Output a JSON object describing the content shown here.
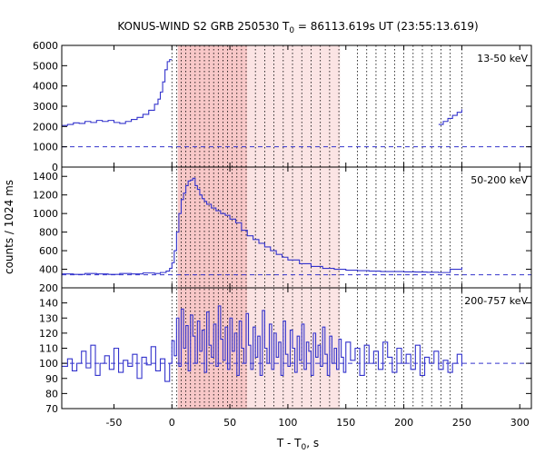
{
  "chart_data": {
    "type": "line",
    "title": "KONUS-WIND S2 GRB 250530 T",
    "title_sub": "0",
    "title_rest": " = 86113.619s UT (23:55:13.619)",
    "xlabel": "T - T",
    "xlabel_sub": "0",
    "xlabel_rest": ", s",
    "ylabel": "counts / 1024 ms",
    "xlim": [
      -95,
      310
    ],
    "xticks": [
      -50,
      0,
      50,
      100,
      150,
      200,
      250,
      300
    ],
    "grid": false,
    "line_color": "#3333cc",
    "shade_color": "#f8c8c8",
    "shade_light_color": "#fbe4e4",
    "shade_regions": [
      {
        "x": [
          5,
          65
        ],
        "intensity": "dark"
      },
      {
        "x": [
          65,
          145
        ],
        "intensity": "light"
      }
    ],
    "vlines_x": [
      0,
      4,
      8,
      12,
      16,
      20,
      24,
      28,
      32,
      36,
      40,
      44,
      48,
      52,
      56,
      60,
      64,
      72,
      80,
      88,
      96,
      104,
      112,
      120,
      128,
      136,
      144,
      160,
      168,
      176,
      184,
      192,
      200,
      208,
      216,
      224,
      232,
      240,
      250
    ],
    "panels": [
      {
        "label": "13-50 keV",
        "ylim": [
          0,
          6000
        ],
        "yticks": [
          0,
          1000,
          2000,
          3000,
          4000,
          5000,
          6000
        ],
        "background_level": 1000,
        "series": [
          {
            "name": "",
            "x": [
              -95,
              -90,
              -85,
              -80,
              -75,
              -70,
              -65,
              -60,
              -55,
              -50,
              -45,
              -40,
              -35,
              -30,
              -25,
              -20,
              -15,
              -12,
              -10,
              -8,
              -6,
              -4,
              -2,
              0
            ],
            "y": [
              2050,
              2100,
              2180,
              2150,
              2250,
              2200,
              2300,
              2250,
              2300,
              2200,
              2150,
              2250,
              2350,
              2450,
              2600,
              2800,
              3100,
              3350,
              3700,
              4200,
              4800,
              5200,
              5300,
              5300
            ]
          },
          {
            "name": "",
            "x": [
              230,
              234,
              238,
              242,
              246,
              250
            ],
            "y": [
              2100,
              2250,
              2400,
              2550,
              2700,
              2850
            ]
          }
        ]
      },
      {
        "label": "50-200 keV",
        "ylim": [
          200,
          1500
        ],
        "yticks": [
          200,
          400,
          600,
          800,
          1000,
          1200,
          1400
        ],
        "background_level": 340,
        "series": [
          {
            "name": "",
            "x": [
              -95,
              -85,
              -75,
              -65,
              -55,
              -45,
              -35,
              -25,
              -15,
              -10,
              -5,
              -2,
              0,
              2,
              4,
              6,
              8,
              10,
              12,
              14,
              16,
              18,
              20,
              22,
              24,
              26,
              28,
              30,
              34,
              38,
              42,
              46,
              50,
              55,
              60,
              65,
              70,
              75,
              80,
              85,
              90,
              95,
              100,
              110,
              120,
              130,
              140,
              150,
              160,
              170,
              180,
              190,
              200,
              210,
              220,
              230,
              240,
              250
            ],
            "y": [
              350,
              345,
              355,
              350,
              345,
              355,
              350,
              360,
              355,
              365,
              380,
              410,
              470,
              600,
              800,
              1000,
              1150,
              1220,
              1300,
              1350,
              1360,
              1380,
              1300,
              1260,
              1200,
              1160,
              1130,
              1100,
              1060,
              1030,
              1000,
              980,
              940,
              900,
              820,
              760,
              720,
              680,
              640,
              600,
              560,
              530,
              500,
              460,
              430,
              410,
              400,
              390,
              385,
              380,
              375,
              375,
              372,
              370,
              368,
              365,
              400,
              420
            ]
          }
        ]
      },
      {
        "label": "200-757 keV",
        "ylim": [
          70,
          150
        ],
        "yticks": [
          70,
          80,
          90,
          100,
          110,
          120,
          130,
          140
        ],
        "background_level": 100,
        "series": [
          {
            "name": "",
            "x": [
              -95,
              -90,
              -86,
              -82,
              -78,
              -74,
              -70,
              -66,
              -62,
              -58,
              -54,
              -50,
              -46,
              -42,
              -38,
              -34,
              -30,
              -26,
              -22,
              -18,
              -14,
              -10,
              -6,
              -2,
              0,
              2,
              4,
              6,
              8,
              10,
              12,
              14,
              16,
              18,
              20,
              22,
              24,
              26,
              28,
              30,
              32,
              34,
              36,
              38,
              40,
              42,
              44,
              46,
              48,
              50,
              52,
              54,
              56,
              58,
              60,
              62,
              64,
              66,
              68,
              70,
              72,
              74,
              76,
              78,
              80,
              82,
              84,
              86,
              88,
              90,
              92,
              94,
              96,
              98,
              100,
              102,
              104,
              106,
              108,
              110,
              112,
              114,
              116,
              118,
              120,
              122,
              124,
              126,
              128,
              130,
              132,
              134,
              136,
              138,
              140,
              142,
              144,
              146,
              148,
              150,
              154,
              158,
              162,
              166,
              170,
              174,
              178,
              182,
              186,
              190,
              194,
              198,
              202,
              206,
              210,
              214,
              218,
              222,
              226,
              230,
              234,
              238,
              242,
              246,
              250
            ],
            "y": [
              98,
              103,
              95,
              100,
              108,
              97,
              112,
              92,
              100,
              105,
              96,
              110,
              94,
              102,
              98,
              106,
              90,
              104,
              99,
              111,
              95,
              103,
              88,
              100,
              115,
              105,
              130,
              98,
              136,
              110,
              125,
              95,
              132,
              118,
              100,
              128,
              108,
              122,
              94,
              134,
              112,
              104,
              126,
              98,
              138,
              116,
              102,
              124,
              96,
              130,
              108,
              120,
              92,
              128,
              110,
              100,
              133,
              112,
              96,
              124,
              104,
              118,
              92,
              135,
              110,
              100,
              126,
              96,
              120,
              104,
              114,
              92,
              128,
              106,
              98,
              122,
              110,
              94,
              118,
              102,
              126,
              96,
              114,
              108,
              92,
              120,
              104,
              112,
              98,
              124,
              106,
              92,
              118,
              100,
              110,
              96,
              116,
              104,
              94,
              114,
              102,
              110,
              92,
              112,
              100,
              108,
              96,
              114,
              104,
              94,
              110,
              100,
              106,
              96,
              112,
              92,
              104,
              100,
              108,
              96,
              102,
              94,
              100,
              106,
              98
            ]
          }
        ]
      }
    ]
  }
}
